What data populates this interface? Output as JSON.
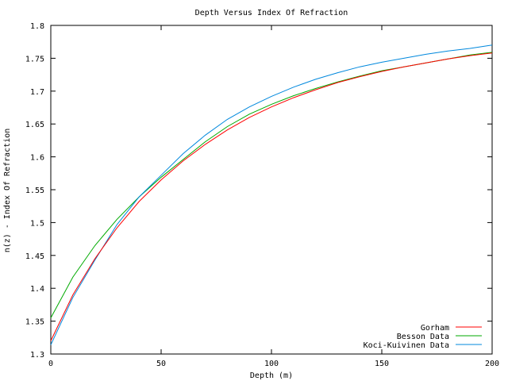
{
  "chart_data": {
    "type": "line",
    "title": "Depth Versus Index Of Refraction",
    "xlabel": "Depth (m)",
    "ylabel": "n(z) - Index Of Refraction",
    "xlim": [
      0,
      200
    ],
    "ylim": [
      1.3,
      1.8
    ],
    "xticks": [
      0,
      50,
      100,
      150,
      200
    ],
    "xtick_labels": [
      "0",
      "50",
      "100",
      "150",
      "200"
    ],
    "yticks": [
      1.3,
      1.35,
      1.4,
      1.45,
      1.5,
      1.55,
      1.6,
      1.65,
      1.7,
      1.75,
      1.8
    ],
    "ytick_labels": [
      "1.3",
      "1.35",
      "1.4",
      "1.45",
      "1.5",
      "1.55",
      "1.6",
      "1.65",
      "1.7",
      "1.75",
      "1.8"
    ],
    "grid": false,
    "legend_position": "bottom-right",
    "x": [
      0,
      10,
      20,
      30,
      40,
      50,
      60,
      70,
      80,
      90,
      100,
      110,
      120,
      130,
      140,
      150,
      160,
      170,
      180,
      190,
      200
    ],
    "series": [
      {
        "name": "Gorham",
        "color": "#ff0000",
        "values": [
          1.32,
          1.39,
          1.445,
          1.492,
          1.532,
          1.565,
          1.594,
          1.619,
          1.641,
          1.66,
          1.676,
          1.69,
          1.702,
          1.713,
          1.722,
          1.73,
          1.737,
          1.743,
          1.749,
          1.754,
          1.758
        ]
      },
      {
        "name": "Besson Data",
        "color": "#00aa00",
        "values": [
          1.355,
          1.417,
          1.465,
          1.505,
          1.539,
          1.569,
          1.596,
          1.623,
          1.646,
          1.665,
          1.68,
          1.693,
          1.704,
          1.714,
          1.723,
          1.731,
          1.737,
          1.743,
          1.749,
          1.755,
          1.759
        ]
      },
      {
        "name": "Koci-Kuivinen Data",
        "color": "#0088dd",
        "values": [
          1.314,
          1.386,
          1.443,
          1.497,
          1.539,
          1.572,
          1.605,
          1.633,
          1.657,
          1.676,
          1.692,
          1.706,
          1.718,
          1.728,
          1.737,
          1.744,
          1.75,
          1.756,
          1.761,
          1.765,
          1.77
        ]
      }
    ]
  }
}
